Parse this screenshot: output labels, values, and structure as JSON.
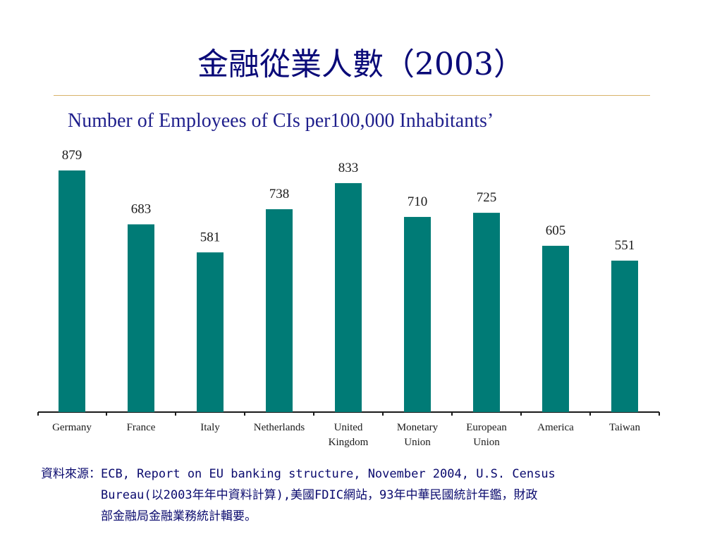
{
  "slide": {
    "title": "金融從業人數（2003）"
  },
  "chart_data": {
    "type": "bar",
    "title": "Number of Employees of CIs per100,000 Inhabitants’",
    "categories": [
      [
        "Germany"
      ],
      [
        "France"
      ],
      [
        "Italy"
      ],
      [
        "Netherlands"
      ],
      [
        "United",
        "Kingdom"
      ],
      [
        "Monetary",
        "Union"
      ],
      [
        "European",
        "Union"
      ],
      [
        "America"
      ],
      [
        "Taiwan"
      ]
    ],
    "values": [
      879,
      683,
      581,
      738,
      833,
      710,
      725,
      605,
      551
    ],
    "ylim": [
      0,
      879
    ],
    "grid": false,
    "legend": "none",
    "colors": {
      "bar": "#007b76",
      "axis": "#1a1a1a",
      "text": "#1a1a1a"
    }
  },
  "source": {
    "prefix": "資料來源：",
    "lines": [
      "ECB, Report on EU banking structure, November 2004, U.S. Census",
      "Bureau(以2003年年中資料計算),美國FDIC網站，93年中華民國統計年鑑，財政",
      "部金融局金融業務統計輯要。"
    ]
  },
  "colors": {
    "title": "#0a0a78",
    "subtitle": "#1f1f8c",
    "rule": "#d8b36a",
    "source": "#0a0a6e"
  }
}
